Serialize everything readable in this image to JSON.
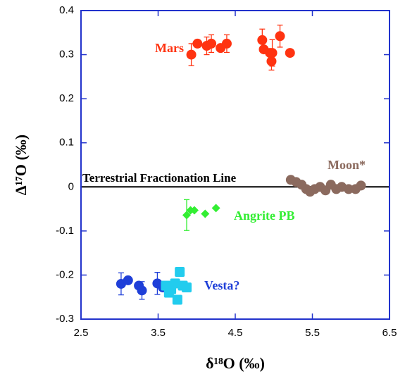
{
  "chart_data": {
    "type": "scatter",
    "x_label": "δ¹⁸O (‰)",
    "y_label": "Δ¹⁷O (‰)",
    "xlim": [
      2.5,
      6.5
    ],
    "xticks": [
      2.5,
      3.5,
      4.5,
      5.5,
      6.5
    ],
    "ylim": [
      -0.3,
      0.4
    ],
    "yticks": [
      -0.3,
      -0.2,
      -0.1,
      0,
      0.1,
      0.2,
      0.3,
      0.4
    ],
    "reference_line": {
      "value": 0,
      "label": "Terrestrial Fractionation Line"
    },
    "series": [
      {
        "name": "Mars",
        "color": "#ff3311",
        "marker": "circle",
        "x": [
          3.93,
          4.01,
          4.13,
          4.19,
          4.31,
          4.39,
          4.85,
          4.87,
          4.95,
          4.97,
          4.98,
          5.08,
          5.21
        ],
        "values": [
          0.3,
          0.325,
          0.32,
          0.325,
          0.315,
          0.325,
          0.333,
          0.312,
          0.304,
          0.285,
          0.304,
          0.342,
          0.304
        ],
        "errors": [
          0.025,
          null,
          0.02,
          0.02,
          null,
          0.02,
          0.025,
          null,
          null,
          0.02,
          0.03,
          0.025,
          null
        ]
      },
      {
        "name": "Moon*",
        "color": "#8b6a5e",
        "marker": "circle",
        "x": [
          5.22,
          5.29,
          5.36,
          5.42,
          5.47,
          5.53,
          5.6,
          5.67,
          5.74,
          5.81,
          5.88,
          5.97,
          6.06,
          6.13
        ],
        "values": [
          0.016,
          0.011,
          0.005,
          -0.005,
          -0.011,
          -0.005,
          0,
          -0.008,
          0.005,
          -0.005,
          0,
          -0.005,
          -0.005,
          0.003
        ]
      },
      {
        "name": "Angrite PB",
        "color": "#33ee33",
        "marker": "diamond",
        "x": [
          3.87,
          3.92,
          3.97,
          4.11,
          4.25
        ],
        "values": [
          -0.064,
          -0.053,
          -0.053,
          -0.061,
          -0.048
        ],
        "errors": [
          0.035,
          null,
          null,
          null,
          null
        ]
      },
      {
        "name": "Vesta?",
        "color": "#1f3fd8",
        "marker": "circle",
        "x": [
          3.02,
          3.11,
          3.25,
          3.29,
          3.49,
          3.56
        ],
        "values": [
          -0.22,
          -0.212,
          -0.224,
          -0.235,
          -0.219,
          -0.228
        ],
        "errors": [
          0.025,
          null,
          null,
          0.02,
          0.025,
          null
        ]
      },
      {
        "color": "#22ccee",
        "marker": "square",
        "x": [
          3.6,
          3.67,
          3.72,
          3.78,
          3.82,
          3.87,
          3.64,
          3.75
        ],
        "values": [
          -0.224,
          -0.232,
          -0.219,
          -0.193,
          -0.224,
          -0.228,
          -0.24,
          -0.256
        ]
      }
    ]
  }
}
